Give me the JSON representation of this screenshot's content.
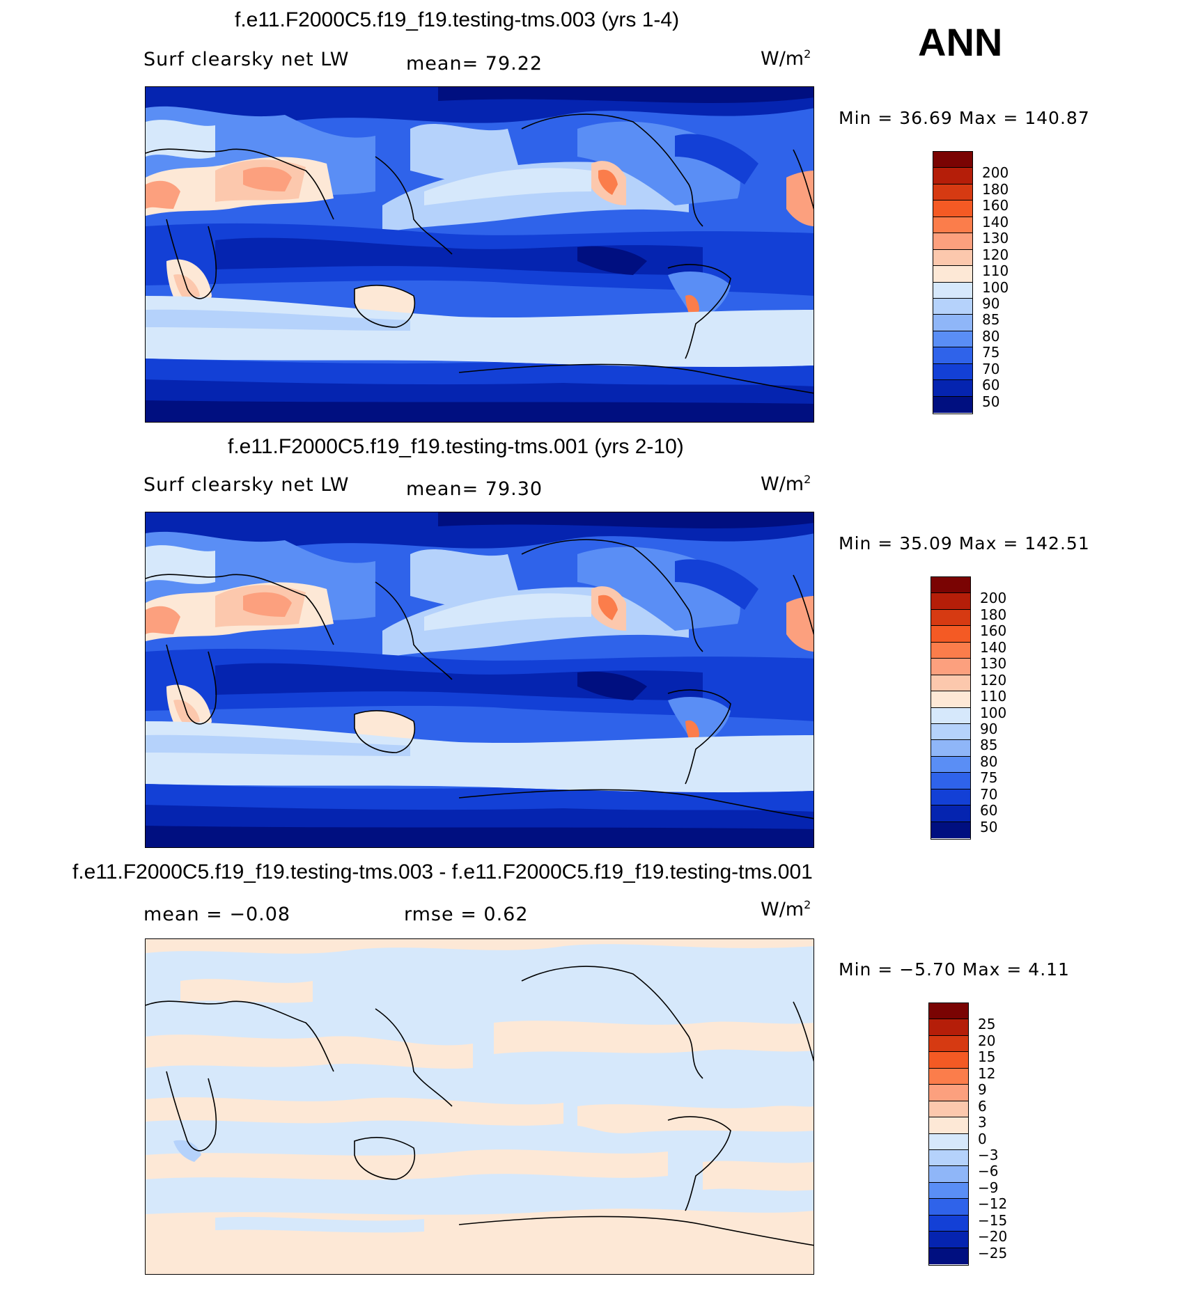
{
  "season": "ANN",
  "panels": [
    {
      "title": "f.e11.F2000C5.f19_f19.testing-tms.003 (yrs 1-4)",
      "left_label": "Surf clearsky net LW",
      "stat_label": "mean=   79.22",
      "units": "W/m",
      "units_sup": "2",
      "minmax": "Min  =    36.69  Max  =  140.87",
      "colorbar_levels": [
        "200",
        "180",
        "160",
        "140",
        "130",
        "120",
        "110",
        "100",
        "90",
        "85",
        "80",
        "75",
        "70",
        "60",
        "50"
      ],
      "colors": [
        "#7a0403",
        "#b51e09",
        "#d63a12",
        "#f45a24",
        "#fb7d4b",
        "#fca07e",
        "#fcc8ad",
        "#fde8d6",
        "#d6e8fb",
        "#b5d2fb",
        "#8fb6f8",
        "#5a8ef5",
        "#2f63ea",
        "#1340d6",
        "#0524b0",
        "#000f80"
      ]
    },
    {
      "title": "f.e11.F2000C5.f19_f19.testing-tms.001 (yrs 2-10)",
      "left_label": "Surf clearsky net LW",
      "stat_label": "mean=   79.30",
      "units": "W/m",
      "units_sup": "2",
      "minmax": "Min  =    35.09  Max  =  142.51",
      "colorbar_levels": [
        "200",
        "180",
        "160",
        "140",
        "130",
        "120",
        "110",
        "100",
        "90",
        "85",
        "80",
        "75",
        "70",
        "60",
        "50"
      ],
      "colors": [
        "#7a0403",
        "#b51e09",
        "#d63a12",
        "#f45a24",
        "#fb7d4b",
        "#fca07e",
        "#fcc8ad",
        "#fde8d6",
        "#d6e8fb",
        "#b5d2fb",
        "#8fb6f8",
        "#5a8ef5",
        "#2f63ea",
        "#1340d6",
        "#0524b0",
        "#000f80"
      ]
    },
    {
      "title": "f.e11.F2000C5.f19_f19.testing-tms.003 - f.e11.F2000C5.f19_f19.testing-tms.001",
      "left_label": "mean  =    −0.08",
      "stat_label": "rmse  =     0.62",
      "units": "W/m",
      "units_sup": "2",
      "minmax": "Min  =   −5.70  Max  =     4.11",
      "colorbar_levels": [
        "25",
        "20",
        "15",
        "12",
        "9",
        "6",
        "3",
        "0",
        "−3",
        "−6",
        "−9",
        "−12",
        "−15",
        "−20",
        "−25"
      ],
      "colors": [
        "#7a0403",
        "#b51e09",
        "#d63a12",
        "#f45a24",
        "#fb7d4b",
        "#fca07e",
        "#fcc8ad",
        "#fde8d6",
        "#d6e8fb",
        "#b5d2fb",
        "#8fb6f8",
        "#5a8ef5",
        "#2f63ea",
        "#1340d6",
        "#0524b0",
        "#000f80"
      ]
    }
  ]
}
